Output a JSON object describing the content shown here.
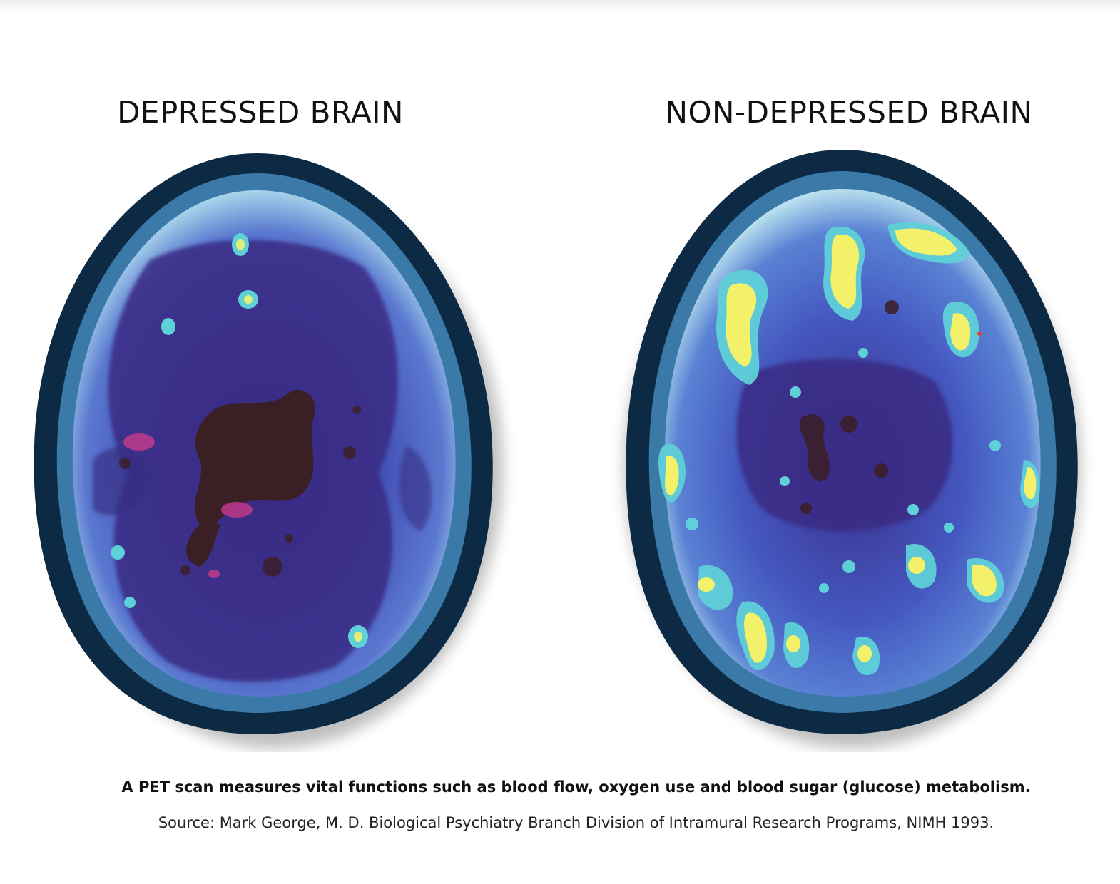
{
  "panels": {
    "left": {
      "title": "DEPRESSED BRAIN"
    },
    "right": {
      "title": "NON-DEPRESSED BRAIN"
    }
  },
  "caption": {
    "main": "A PET scan measures vital functions such as blood flow, oxygen use and blood sugar (glucose) metabolism.",
    "source": "Source: Mark George, M. D. Biological Psychiatry Branch Division of Intramural Research Programs, NIMH 1993."
  },
  "colors": {
    "skull": "#0d2a45",
    "cortex_low": "#4b5bc4",
    "cortex_deep": "#3a2f86",
    "core_dark": "#3a1f24",
    "hotspot_cyan": "#5fd0d8",
    "hotspot_yellow": "#f3f06a",
    "hotspot_magenta": "#c03a8a"
  }
}
